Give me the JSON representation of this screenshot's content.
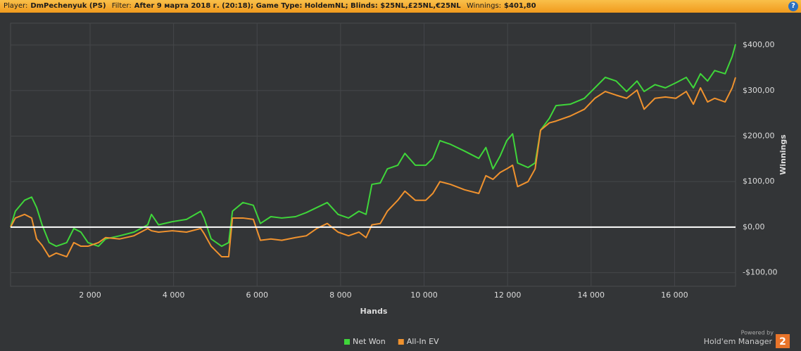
{
  "header": {
    "player_label": "Player:",
    "player": "DmPechenyuk (PS)",
    "filter_label": "Filter:",
    "filter": "After 9 марта 2018 г. (20:18); Game Type: HoldemNL; Blinds: $25NL,£25NL,€25NL",
    "winnings_label": "Winnings:",
    "winnings": "$401,80",
    "help": "?"
  },
  "branding": {
    "powered_by": "Powered by",
    "product": "Hold'em Manager",
    "version": "2"
  },
  "chart_data": {
    "type": "line",
    "x_label": "Hands",
    "y_label": "Winnings",
    "x": [
      95,
      210,
      430,
      600,
      720,
      850,
      1020,
      1190,
      1440,
      1610,
      1780,
      1950,
      2200,
      2370,
      2710,
      3050,
      3380,
      3470,
      3640,
      3970,
      4310,
      4650,
      4730,
      4900,
      5150,
      5320,
      5410,
      5660,
      5910,
      6080,
      6330,
      6590,
      6920,
      7180,
      7430,
      7680,
      7940,
      8190,
      8440,
      8610,
      8750,
      8950,
      9120,
      9370,
      9540,
      9790,
      10040,
      10210,
      10380,
      10630,
      10970,
      11310,
      11480,
      11650,
      11820,
      11980,
      12120,
      12240,
      12490,
      12660,
      12790,
      13000,
      13160,
      13500,
      13840,
      14090,
      14340,
      14600,
      14850,
      15100,
      15270,
      15530,
      15780,
      16030,
      16280,
      16450,
      16620,
      16790,
      16960,
      17210,
      17380,
      17460
    ],
    "series": [
      {
        "name": "Net Won",
        "color": "#3fd63a",
        "values": [
          0,
          35,
          59,
          66,
          43,
          5,
          -34,
          -42,
          -34,
          -3,
          -11,
          -34,
          -42,
          -26,
          -19,
          -11,
          5,
          28,
          5,
          12,
          17,
          35,
          20,
          -26,
          -42,
          -34,
          35,
          54,
          48,
          8,
          23,
          20,
          23,
          32,
          43,
          54,
          28,
          20,
          35,
          28,
          94,
          97,
          128,
          136,
          162,
          136,
          136,
          151,
          190,
          182,
          167,
          151,
          175,
          128,
          156,
          190,
          205,
          141,
          131,
          141,
          213,
          239,
          267,
          270,
          283,
          306,
          329,
          321,
          298,
          321,
          298,
          313,
          306,
          317,
          329,
          306,
          337,
          321,
          344,
          337,
          375,
          401.8
        ]
      },
      {
        "name": "All-In EV",
        "color": "#f0922e",
        "values": [
          0,
          20,
          28,
          20,
          -26,
          -40,
          -65,
          -57,
          -65,
          -34,
          -42,
          -42,
          -34,
          -23,
          -26,
          -19,
          -3,
          -8,
          -11,
          -8,
          -11,
          -3,
          -14,
          -42,
          -65,
          -65,
          20,
          20,
          17,
          -29,
          -26,
          -29,
          -23,
          -19,
          -3,
          8,
          -11,
          -19,
          -11,
          -23,
          5,
          8,
          35,
          59,
          79,
          59,
          59,
          74,
          100,
          94,
          82,
          74,
          113,
          105,
          120,
          128,
          136,
          89,
          100,
          128,
          213,
          229,
          233,
          244,
          259,
          283,
          298,
          290,
          283,
          301,
          259,
          283,
          286,
          283,
          298,
          270,
          306,
          275,
          283,
          275,
          306,
          329
        ]
      }
    ],
    "xlim": [
      95,
      17460
    ],
    "ylim": [
      -130,
      448
    ],
    "xticks": [
      {
        "value": 2000,
        "label": "2 000"
      },
      {
        "value": 4000,
        "label": "4 000"
      },
      {
        "value": 6000,
        "label": "6 000"
      },
      {
        "value": 8000,
        "label": "8 000"
      },
      {
        "value": 10000,
        "label": "10 000"
      },
      {
        "value": 12000,
        "label": "12 000"
      },
      {
        "value": 14000,
        "label": "14 000"
      },
      {
        "value": 16000,
        "label": "16 000"
      }
    ],
    "yticks": [
      {
        "value": -100,
        "label": "-$100,00"
      },
      {
        "value": 0,
        "label": "$0,00"
      },
      {
        "value": 100,
        "label": "$100,00"
      },
      {
        "value": 200,
        "label": "$200,00"
      },
      {
        "value": 300,
        "label": "$300,00"
      },
      {
        "value": 400,
        "label": "$400,00"
      }
    ],
    "grid": true,
    "legend": "bottom"
  }
}
